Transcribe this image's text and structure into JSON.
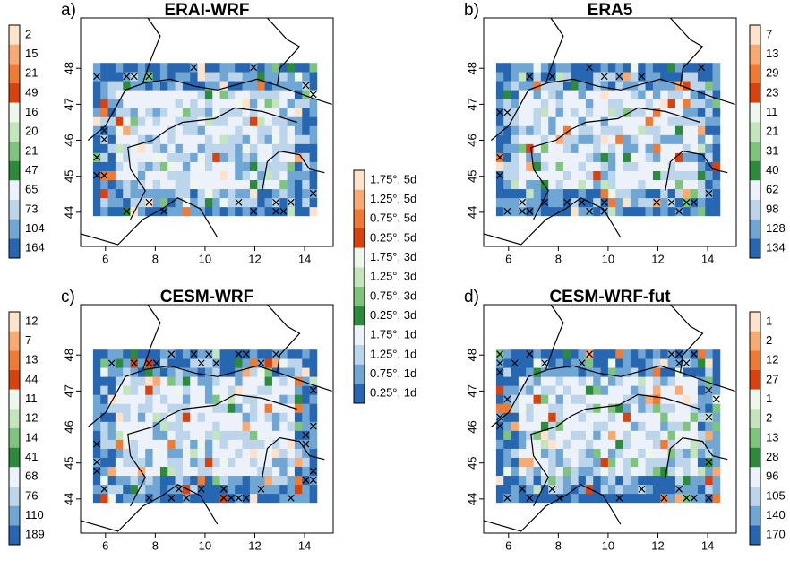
{
  "central_legend": {
    "labels": [
      "1.75°, 5d",
      "1.25°, 5d",
      "0.75°, 5d",
      "0.25°, 5d",
      "1.75°, 3d",
      "1.25°, 3d",
      "0.75°, 3d",
      "0.25°, 3d",
      "1.75°, 1d",
      "1.25°, 1d",
      "0.75°, 1d",
      "0.25°, 1d"
    ],
    "colors": [
      "#fde3cc",
      "#f9aa72",
      "#ef7a34",
      "#d7420f",
      "#eef7ec",
      "#c4e4bd",
      "#7fc47c",
      "#2b8a3c",
      "#edf2fa",
      "#bcd5ea",
      "#6fa6d4",
      "#2766b0"
    ]
  },
  "xlim": [
    5,
    15.15
  ],
  "ylim": [
    43.05,
    49.4
  ],
  "xticks": [
    6,
    8,
    10,
    12,
    14
  ],
  "yticks": [
    44,
    45,
    46,
    47,
    48
  ],
  "panels": [
    {
      "label": "a)",
      "title": "ERAI-WRF",
      "legend": [
        2,
        15,
        21,
        49,
        16,
        20,
        21,
        47,
        65,
        73,
        104,
        164
      ]
    },
    {
      "label": "b)",
      "title": "ERA5",
      "legend": [
        7,
        13,
        29,
        23,
        11,
        21,
        31,
        40,
        62,
        98,
        128,
        134
      ]
    },
    {
      "label": "c)",
      "title": "CESM-WRF",
      "legend": [
        12,
        7,
        13,
        44,
        11,
        12,
        14,
        41,
        68,
        76,
        110,
        189
      ]
    },
    {
      "label": "d)",
      "title": "CESM-WRF-fut",
      "legend": [
        1,
        2,
        12,
        27,
        1,
        2,
        13,
        28,
        96,
        105,
        140,
        170
      ]
    }
  ]
}
